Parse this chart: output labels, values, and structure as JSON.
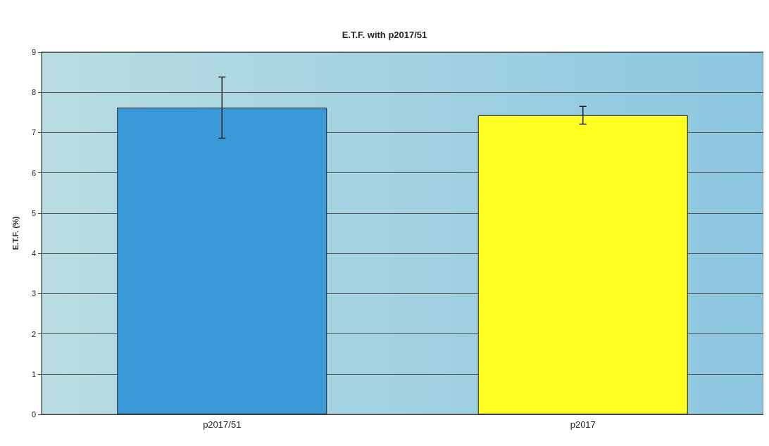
{
  "chart_data": {
    "type": "bar",
    "title": "E.T.F. with p2017/51",
    "ylabel": "E.T.F. (%)",
    "categories": [
      "p2017/51",
      "p2017"
    ],
    "values": [
      7.62,
      7.43
    ],
    "errors": [
      0.76,
      0.22
    ],
    "colors": [
      "#3a9ad8",
      "#ffff22"
    ],
    "ylim": [
      0,
      9
    ],
    "yticks": [
      0,
      1,
      2,
      3,
      4,
      5,
      6,
      7,
      8,
      9
    ],
    "grid": "y"
  }
}
